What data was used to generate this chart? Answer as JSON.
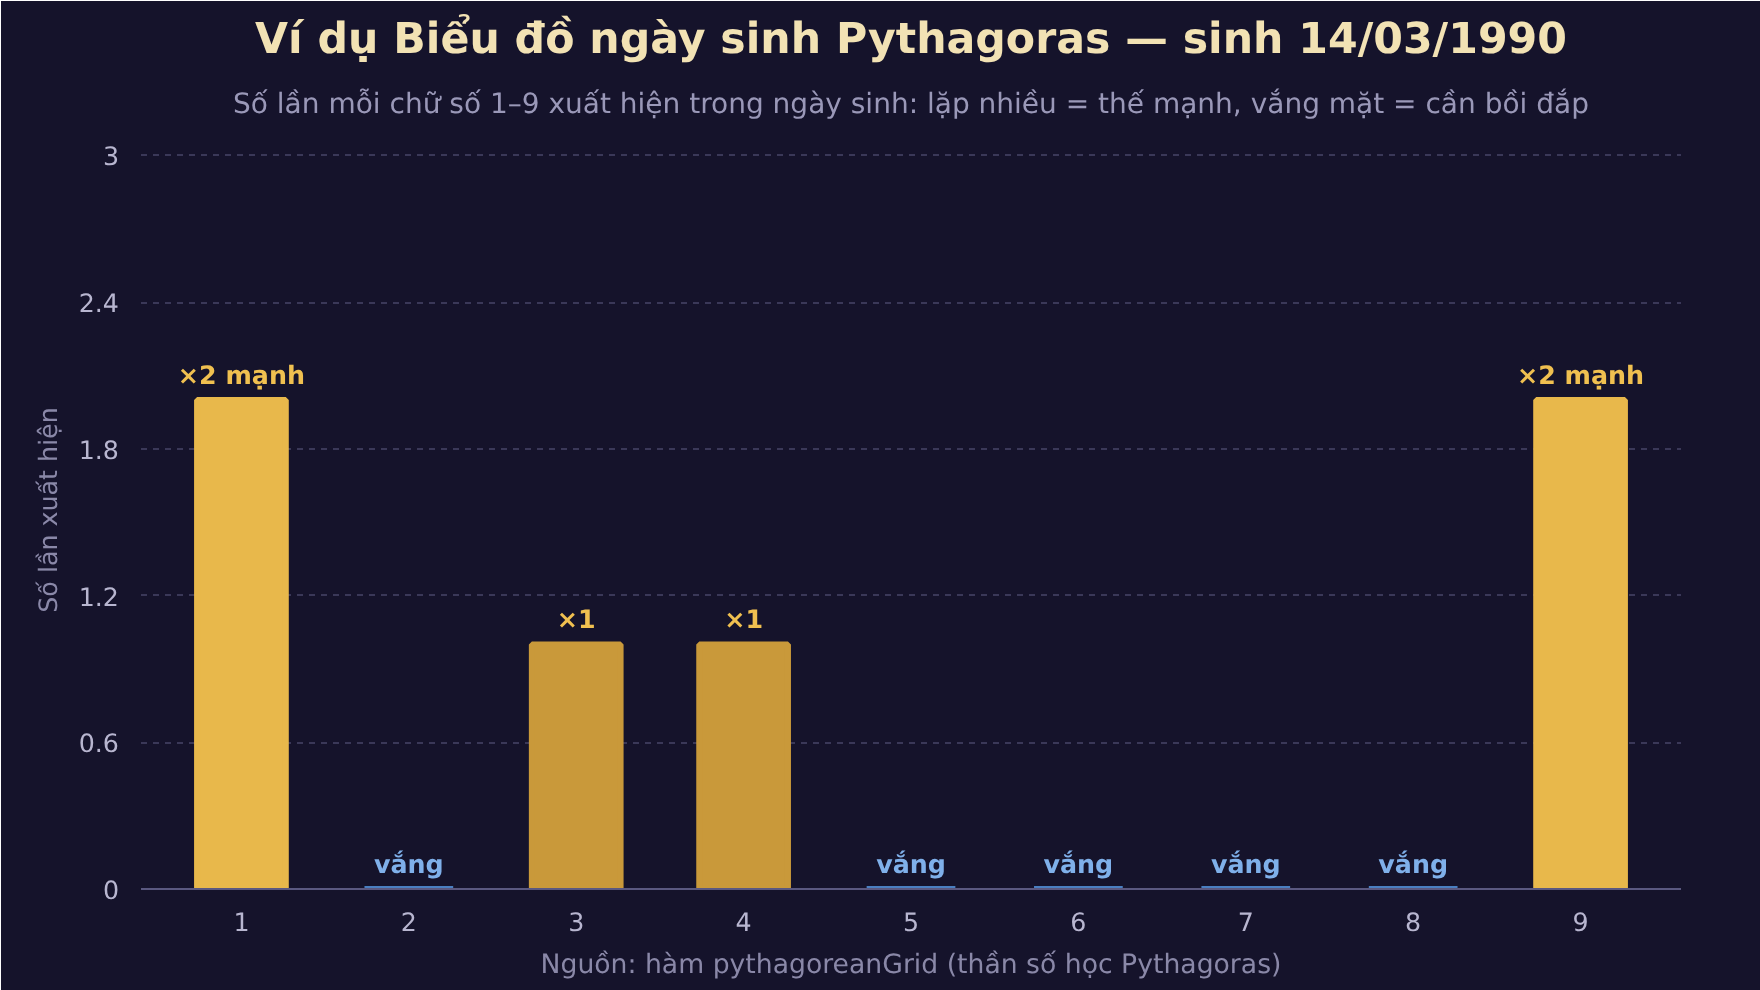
{
  "chart_data": {
    "type": "bar",
    "title": "Ví dụ Biểu đồ ngày sinh Pythagoras — sinh 14/03/1990",
    "subtitle": "Số lần mỗi chữ số 1–9 xuất hiện trong ngày sinh: lặp nhiều = thế mạnh, vắng mặt = cần bồi đắp",
    "ylabel": "Số lần xuất hiện",
    "annotations": [
      "Nguồn: hàm pythagoreanGrid (thần số học Pythagoras)"
    ],
    "categories": [
      "1",
      "2",
      "3",
      "4",
      "5",
      "6",
      "7",
      "8",
      "9"
    ],
    "values": [
      2,
      0,
      1,
      1,
      0,
      0,
      0,
      0,
      2
    ],
    "colors": [
      "#e8b84b",
      "#4a7fc1",
      "#c9993a",
      "#c9993a",
      "#4a7fc1",
      "#4a7fc1",
      "#4a7fc1",
      "#4a7fc1",
      "#e8b84b"
    ],
    "value_labels": [
      "×2 mạnh",
      "vắng",
      "×1",
      "×1",
      "vắng",
      "vắng",
      "vắng",
      "vắng",
      "×2 mạnh"
    ],
    "ylim": [
      0,
      3.1
    ],
    "yticks": [
      0,
      0.6,
      1.2,
      1.8,
      2.4,
      3
    ],
    "grid": "y"
  }
}
